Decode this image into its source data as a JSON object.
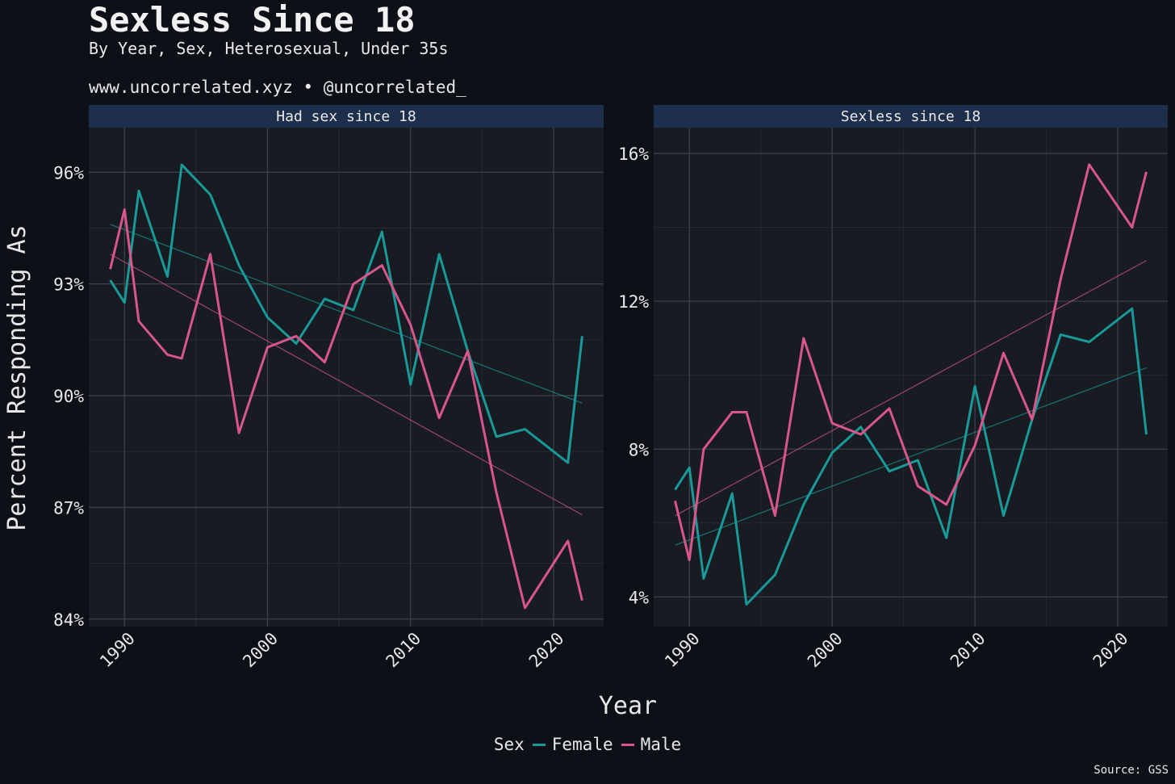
{
  "chart_data": {
    "type": "line",
    "title": "Sexless Since 18",
    "subtitle": "By Year, Sex, Heterosexual, Under 35s",
    "caption_top": "www.uncorrelated.xyz • @uncorrelated_",
    "xlabel": "Year",
    "ylabel": "Percent Responding As",
    "source": "Source: GSS",
    "legend_title": "Sex",
    "legend_position": "bottom",
    "grid": true,
    "colors": {
      "Female": "#1a9999",
      "Male": "#d9568a"
    },
    "x_ticks": [
      1990,
      2000,
      2010,
      2020
    ],
    "xlim": [
      1987.5,
      2023.5
    ],
    "panels": [
      {
        "title": "Had sex since 18",
        "ylim": [
          83.8,
          97.2
        ],
        "y_ticks": [
          84,
          87,
          90,
          93,
          96
        ],
        "y_tick_labels": [
          "84%",
          "87%",
          "90%",
          "93%",
          "96%"
        ],
        "series": [
          {
            "name": "Female",
            "x": [
              1989,
              1990,
              1991,
              1993,
              1994,
              1996,
              1998,
              2000,
              2002,
              2004,
              2006,
              2008,
              2010,
              2012,
              2014,
              2016,
              2018,
              2021,
              2022
            ],
            "values": [
              93.1,
              92.5,
              95.5,
              93.2,
              96.2,
              95.4,
              93.5,
              92.1,
              91.4,
              92.6,
              92.3,
              94.4,
              90.3,
              93.8,
              91.2,
              88.9,
              89.1,
              88.2,
              91.6
            ],
            "trend": [
              94.6,
              89.8
            ]
          },
          {
            "name": "Male",
            "x": [
              1989,
              1990,
              1991,
              1993,
              1994,
              1996,
              1998,
              2000,
              2002,
              2004,
              2006,
              2008,
              2010,
              2012,
              2014,
              2016,
              2018,
              2021,
              2022
            ],
            "values": [
              93.4,
              95.0,
              92.0,
              91.1,
              91.0,
              93.8,
              89.0,
              91.3,
              91.6,
              90.9,
              93.0,
              93.5,
              91.9,
              89.4,
              91.2,
              87.4,
              84.3,
              86.1,
              84.5
            ],
            "trend": [
              93.8,
              86.8
            ]
          }
        ]
      },
      {
        "title": "Sexless since 18",
        "ylim": [
          3.2,
          16.7
        ],
        "y_ticks": [
          4,
          8,
          12,
          16
        ],
        "y_tick_labels": [
          "4%",
          "8%",
          "12%",
          "16%"
        ],
        "series": [
          {
            "name": "Female",
            "x": [
              1989,
              1990,
              1991,
              1993,
              1994,
              1996,
              1998,
              2000,
              2002,
              2004,
              2006,
              2008,
              2010,
              2012,
              2014,
              2016,
              2018,
              2021,
              2022
            ],
            "values": [
              6.9,
              7.5,
              4.5,
              6.8,
              3.8,
              4.6,
              6.5,
              7.9,
              8.6,
              7.4,
              7.7,
              5.6,
              9.7,
              6.2,
              8.8,
              11.1,
              10.9,
              11.8,
              8.4
            ],
            "trend": [
              5.4,
              10.2
            ]
          },
          {
            "name": "Male",
            "x": [
              1989,
              1990,
              1991,
              1993,
              1994,
              1996,
              1998,
              2000,
              2002,
              2004,
              2006,
              2008,
              2010,
              2012,
              2014,
              2016,
              2018,
              2021,
              2022
            ],
            "values": [
              6.6,
              5.0,
              8.0,
              9.0,
              9.0,
              6.2,
              11.0,
              8.7,
              8.4,
              9.1,
              7.0,
              6.5,
              8.1,
              10.6,
              8.8,
              12.6,
              15.7,
              14.0,
              15.5
            ],
            "trend": [
              6.2,
              13.1
            ]
          }
        ]
      }
    ]
  }
}
